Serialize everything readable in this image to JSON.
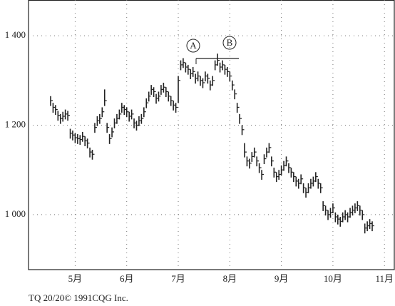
{
  "chart_data": {
    "type": "ohlc",
    "annotations": [
      "A",
      "B"
    ],
    "footer": "TQ 20/20© 1991CQG Inc.",
    "color": "#222222",
    "grid": true,
    "xlim": [
      2,
      151
    ],
    "ylim": [
      877,
      1480
    ],
    "xticks": [
      {
        "value": 21,
        "label": "5月"
      },
      {
        "value": 42,
        "label": "6月"
      },
      {
        "value": 63,
        "label": "7月"
      },
      {
        "value": 84,
        "label": "8月"
      },
      {
        "value": 105,
        "label": "9月"
      },
      {
        "value": 126,
        "label": "10月"
      },
      {
        "value": 147,
        "label": "11月"
      }
    ],
    "yticks": [
      {
        "value": 1000,
        "label": "1 000"
      },
      {
        "value": 1200,
        "label": "1 200"
      },
      {
        "value": 1400,
        "label": "1 400"
      }
    ],
    "x": [
      11,
      12,
      13,
      14,
      15,
      16,
      17,
      18,
      19,
      20,
      21,
      22,
      23,
      24,
      25,
      26,
      27,
      28,
      29,
      30,
      31,
      32,
      33,
      34,
      35,
      36,
      37,
      38,
      39,
      40,
      41,
      42,
      43,
      44,
      45,
      46,
      47,
      48,
      49,
      50,
      51,
      52,
      53,
      54,
      55,
      56,
      57,
      58,
      59,
      60,
      61,
      62,
      63,
      64,
      65,
      66,
      67,
      68,
      69,
      70,
      71,
      72,
      73,
      74,
      75,
      76,
      77,
      78,
      79,
      80,
      81,
      82,
      83,
      84,
      85,
      86,
      87,
      88,
      89,
      90,
      91,
      92,
      93,
      94,
      95,
      96,
      97,
      98,
      99,
      100,
      101,
      102,
      103,
      104,
      105,
      106,
      107,
      108,
      109,
      110,
      111,
      112,
      113,
      114,
      115,
      116,
      117,
      118,
      119,
      120,
      121,
      122,
      123,
      124,
      125,
      126,
      127,
      128,
      129,
      130,
      131,
      132,
      133,
      134,
      135,
      136,
      137,
      138,
      139,
      140,
      141,
      142
    ],
    "high": [
      1265,
      1250,
      1245,
      1232,
      1225,
      1230,
      1235,
      1232,
      1192,
      1188,
      1182,
      1180,
      1178,
      1185,
      1175,
      1170,
      1150,
      1145,
      1205,
      1220,
      1225,
      1240,
      1280,
      1205,
      1180,
      1195,
      1215,
      1225,
      1235,
      1250,
      1245,
      1240,
      1230,
      1235,
      1215,
      1210,
      1220,
      1225,
      1240,
      1260,
      1275,
      1290,
      1285,
      1270,
      1275,
      1290,
      1295,
      1285,
      1275,
      1265,
      1255,
      1250,
      1310,
      1345,
      1350,
      1340,
      1335,
      1325,
      1330,
      1315,
      1320,
      1310,
      1305,
      1320,
      1315,
      1300,
      1310,
      1345,
      1360,
      1340,
      1345,
      1335,
      1330,
      1320,
      1300,
      1280,
      1250,
      1225,
      1200,
      1160,
      1130,
      1125,
      1140,
      1150,
      1130,
      1115,
      1100,
      1135,
      1150,
      1160,
      1130,
      1105,
      1095,
      1100,
      1110,
      1120,
      1130,
      1115,
      1105,
      1095,
      1085,
      1080,
      1090,
      1070,
      1060,
      1070,
      1080,
      1085,
      1095,
      1080,
      1070,
      1030,
      1020,
      1010,
      1015,
      1025,
      1005,
      1000,
      995,
      1005,
      1010,
      1005,
      1015,
      1020,
      1025,
      1030,
      1020,
      1010,
      980,
      985,
      990,
      985
    ],
    "low": [
      1243,
      1228,
      1223,
      1210,
      1203,
      1208,
      1213,
      1210,
      1170,
      1166,
      1160,
      1158,
      1156,
      1163,
      1153,
      1148,
      1128,
      1123,
      1183,
      1198,
      1203,
      1218,
      1243,
      1183,
      1158,
      1173,
      1193,
      1203,
      1213,
      1228,
      1223,
      1218,
      1208,
      1213,
      1193,
      1188,
      1198,
      1203,
      1218,
      1238,
      1253,
      1268,
      1263,
      1248,
      1253,
      1268,
      1273,
      1263,
      1253,
      1243,
      1233,
      1228,
      1250,
      1323,
      1328,
      1318,
      1313,
      1303,
      1308,
      1293,
      1298,
      1288,
      1283,
      1298,
      1293,
      1278,
      1288,
      1323,
      1333,
      1318,
      1323,
      1313,
      1308,
      1298,
      1278,
      1258,
      1228,
      1203,
      1178,
      1128,
      1108,
      1103,
      1118,
      1128,
      1108,
      1093,
      1078,
      1113,
      1128,
      1138,
      1108,
      1083,
      1073,
      1078,
      1088,
      1098,
      1108,
      1093,
      1083,
      1073,
      1063,
      1058,
      1068,
      1048,
      1038,
      1048,
      1058,
      1063,
      1073,
      1058,
      1048,
      1008,
      998,
      988,
      993,
      1003,
      983,
      978,
      973,
      983,
      988,
      983,
      993,
      998,
      1003,
      1008,
      998,
      988,
      958,
      963,
      968,
      963
    ],
    "close": [
      1255,
      1240,
      1235,
      1222,
      1215,
      1220,
      1225,
      1222,
      1182,
      1178,
      1172,
      1170,
      1168,
      1175,
      1165,
      1160,
      1140,
      1135,
      1195,
      1210,
      1215,
      1230,
      1255,
      1195,
      1170,
      1185,
      1205,
      1215,
      1225,
      1240,
      1235,
      1230,
      1220,
      1225,
      1205,
      1200,
      1210,
      1215,
      1230,
      1250,
      1265,
      1280,
      1275,
      1260,
      1265,
      1280,
      1285,
      1275,
      1265,
      1255,
      1245,
      1240,
      1300,
      1335,
      1340,
      1330,
      1325,
      1315,
      1320,
      1305,
      1310,
      1300,
      1295,
      1310,
      1305,
      1290,
      1300,
      1335,
      1345,
      1330,
      1335,
      1325,
      1320,
      1310,
      1290,
      1270,
      1240,
      1215,
      1190,
      1140,
      1120,
      1115,
      1130,
      1140,
      1120,
      1105,
      1090,
      1125,
      1140,
      1150,
      1120,
      1095,
      1085,
      1090,
      1100,
      1110,
      1120,
      1105,
      1095,
      1085,
      1075,
      1070,
      1080,
      1060,
      1050,
      1060,
      1070,
      1075,
      1085,
      1070,
      1060,
      1020,
      1010,
      1000,
      1005,
      1015,
      995,
      990,
      985,
      995,
      1000,
      995,
      1005,
      1010,
      1015,
      1020,
      1010,
      1000,
      970,
      975,
      980,
      975
    ]
  }
}
